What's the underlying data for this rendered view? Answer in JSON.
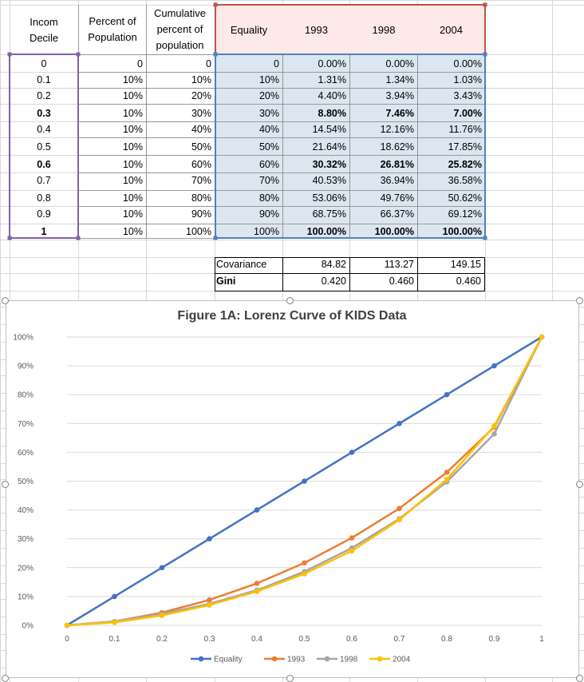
{
  "headers": {
    "income_decile": [
      "Incom",
      "Decile"
    ],
    "percent_pop": [
      "Percent of",
      "Population"
    ],
    "cumulative": [
      "Cumulative",
      "percent of",
      "population"
    ],
    "equality": "Equality",
    "y1993": "1993",
    "y1998": "1998",
    "y2004": "2004"
  },
  "rows": [
    {
      "decile": "0",
      "pct": "0",
      "cum": "0",
      "eq": "0",
      "y1993": "0.00%",
      "y1998": "0.00%",
      "y2004": "0.00%",
      "bold": false
    },
    {
      "decile": "0.1",
      "pct": "10%",
      "cum": "10%",
      "eq": "10%",
      "y1993": "1.31%",
      "y1998": "1.34%",
      "y2004": "1.03%",
      "bold": false
    },
    {
      "decile": "0.2",
      "pct": "10%",
      "cum": "20%",
      "eq": "20%",
      "y1993": "4.40%",
      "y1998": "3.94%",
      "y2004": "3.43%",
      "bold": false
    },
    {
      "decile": "0.3",
      "pct": "10%",
      "cum": "30%",
      "eq": "30%",
      "y1993": "8.80%",
      "y1998": "7.46%",
      "y2004": "7.00%",
      "bold": true
    },
    {
      "decile": "0.4",
      "pct": "10%",
      "cum": "40%",
      "eq": "40%",
      "y1993": "14.54%",
      "y1998": "12.16%",
      "y2004": "11.76%",
      "bold": false
    },
    {
      "decile": "0.5",
      "pct": "10%",
      "cum": "50%",
      "eq": "50%",
      "y1993": "21.64%",
      "y1998": "18.62%",
      "y2004": "17.85%",
      "bold": false
    },
    {
      "decile": "0.6",
      "pct": "10%",
      "cum": "60%",
      "eq": "60%",
      "y1993": "30.32%",
      "y1998": "26.81%",
      "y2004": "25.82%",
      "bold": true
    },
    {
      "decile": "0.7",
      "pct": "10%",
      "cum": "70%",
      "eq": "70%",
      "y1993": "40.53%",
      "y1998": "36.94%",
      "y2004": "36.58%",
      "bold": false
    },
    {
      "decile": "0.8",
      "pct": "10%",
      "cum": "80%",
      "eq": "80%",
      "y1993": "53.06%",
      "y1998": "49.76%",
      "y2004": "50.62%",
      "bold": false
    },
    {
      "decile": "0.9",
      "pct": "10%",
      "cum": "90%",
      "eq": "90%",
      "y1993": "68.75%",
      "y1998": "66.37%",
      "y2004": "69.12%",
      "bold": false
    },
    {
      "decile": "1",
      "pct": "10%",
      "cum": "100%",
      "eq": "100%",
      "y1993": "100.00%",
      "y1998": "100.00%",
      "y2004": "100.00%",
      "bold": true
    }
  ],
  "stats": {
    "covariance_label": "Covariance",
    "covariance": [
      "84.82",
      "113.27",
      "149.15"
    ],
    "gini_label": "Gini",
    "gini": [
      "0.420",
      "0.460",
      "0.460"
    ]
  },
  "colors": {
    "equality": "#4472C4",
    "y1993": "#ED7D31",
    "y1998": "#A5A5A5",
    "y2004": "#FFC000",
    "header_border": "#C0504D",
    "decile_border": "#8064A2",
    "data_border": "#4F81BD",
    "data_fill": "#DCE6F1"
  },
  "chart_data": {
    "type": "line",
    "title": "Figure 1A: Lorenz Curve of KIDS Data",
    "xlabel": "",
    "ylabel": "",
    "x": [
      0,
      0.1,
      0.2,
      0.3,
      0.4,
      0.5,
      0.6,
      0.7,
      0.8,
      0.9,
      1
    ],
    "x_tick_labels": [
      "0",
      "0.1",
      "0.2",
      "0.3",
      "0.4",
      "0.5",
      "0.6",
      "0.7",
      "0.8",
      "0.9",
      "1"
    ],
    "y_tick_labels": [
      "0%",
      "10%",
      "20%",
      "30%",
      "40%",
      "50%",
      "60%",
      "70%",
      "80%",
      "90%",
      "100%"
    ],
    "ylim": [
      0,
      1
    ],
    "grid": true,
    "legend_position": "bottom",
    "series": [
      {
        "name": "Equality",
        "color": "#4472C4",
        "values": [
          0,
          0.1,
          0.2,
          0.3,
          0.4,
          0.5,
          0.6,
          0.7,
          0.8,
          0.9,
          1
        ]
      },
      {
        "name": "1993",
        "color": "#ED7D31",
        "values": [
          0,
          0.0131,
          0.044,
          0.088,
          0.1454,
          0.2164,
          0.3032,
          0.4053,
          0.5306,
          0.6875,
          1
        ]
      },
      {
        "name": "1998",
        "color": "#A5A5A5",
        "values": [
          0,
          0.0134,
          0.0394,
          0.0746,
          0.1216,
          0.1862,
          0.2681,
          0.3694,
          0.4976,
          0.6637,
          1
        ]
      },
      {
        "name": "2004",
        "color": "#FFC000",
        "values": [
          0,
          0.0103,
          0.0343,
          0.07,
          0.1176,
          0.1785,
          0.2582,
          0.3658,
          0.5062,
          0.6912,
          1
        ]
      }
    ]
  }
}
